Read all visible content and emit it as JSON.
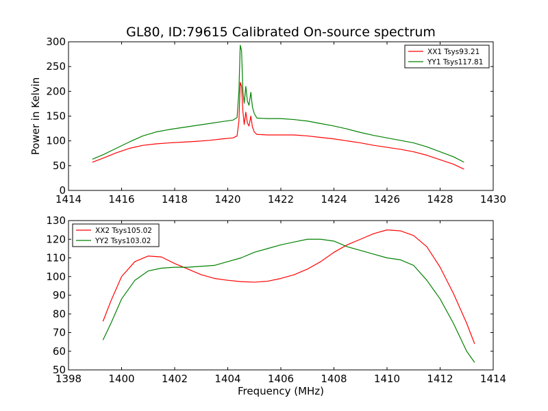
{
  "figure": {
    "title": "GL80, ID:79615 Calibrated On-source spectrum",
    "xlabel": "Frequency (MHz)"
  },
  "chart_data": [
    {
      "type": "line",
      "ylabel": "Power in Kelvin",
      "xlim": [
        1414,
        1430
      ],
      "ylim": [
        0,
        300
      ],
      "xticks": [
        1414,
        1416,
        1418,
        1420,
        1422,
        1424,
        1426,
        1428,
        1430
      ],
      "yticks": [
        0,
        50,
        100,
        150,
        200,
        250,
        300
      ],
      "grid": false,
      "legend_position": "top-right",
      "series": [
        {
          "name": "XX1 Tsys93.21",
          "color": "#ff0000",
          "points": [
            [
              1414.9,
              57
            ],
            [
              1415.3,
              65
            ],
            [
              1415.8,
              76
            ],
            [
              1416.3,
              85
            ],
            [
              1416.8,
              91
            ],
            [
              1417.3,
              94
            ],
            [
              1417.8,
              96
            ],
            [
              1418.3,
              97.5
            ],
            [
              1418.8,
              99
            ],
            [
              1419.3,
              101
            ],
            [
              1419.8,
              104
            ],
            [
              1420.2,
              106
            ],
            [
              1420.35,
              110
            ],
            [
              1420.42,
              140
            ],
            [
              1420.47,
              218
            ],
            [
              1420.52,
              210
            ],
            [
              1420.57,
              160
            ],
            [
              1420.62,
              133
            ],
            [
              1420.68,
              158
            ],
            [
              1420.74,
              136
            ],
            [
              1420.8,
              130
            ],
            [
              1420.87,
              150
            ],
            [
              1420.93,
              128
            ],
            [
              1421.0,
              118
            ],
            [
              1421.1,
              113
            ],
            [
              1421.5,
              112
            ],
            [
              1422.0,
              112
            ],
            [
              1422.5,
              112
            ],
            [
              1423.0,
              110
            ],
            [
              1423.5,
              107
            ],
            [
              1424.0,
              104
            ],
            [
              1424.5,
              100
            ],
            [
              1425.0,
              96
            ],
            [
              1425.5,
              91
            ],
            [
              1426.0,
              87
            ],
            [
              1426.5,
              83
            ],
            [
              1427.0,
              78
            ],
            [
              1427.5,
              71
            ],
            [
              1428.0,
              62
            ],
            [
              1428.5,
              53
            ],
            [
              1428.9,
              43
            ]
          ]
        },
        {
          "name": "YY1 Tsys117.81",
          "color": "#008000",
          "points": [
            [
              1414.9,
              63
            ],
            [
              1415.3,
              72
            ],
            [
              1415.8,
              85
            ],
            [
              1416.3,
              98
            ],
            [
              1416.8,
              110
            ],
            [
              1417.3,
              118
            ],
            [
              1417.8,
              123
            ],
            [
              1418.3,
              127
            ],
            [
              1418.8,
              131
            ],
            [
              1419.3,
              135
            ],
            [
              1419.8,
              139
            ],
            [
              1420.2,
              142
            ],
            [
              1420.35,
              147
            ],
            [
              1420.42,
              200
            ],
            [
              1420.47,
              293
            ],
            [
              1420.52,
              282
            ],
            [
              1420.57,
              200
            ],
            [
              1420.62,
              176
            ],
            [
              1420.68,
              210
            ],
            [
              1420.74,
              180
            ],
            [
              1420.8,
              172
            ],
            [
              1420.87,
              198
            ],
            [
              1420.93,
              168
            ],
            [
              1421.0,
              155
            ],
            [
              1421.1,
              146
            ],
            [
              1421.5,
              145
            ],
            [
              1422.0,
              145
            ],
            [
              1422.5,
              143
            ],
            [
              1423.0,
              140
            ],
            [
              1423.5,
              135
            ],
            [
              1424.0,
              130
            ],
            [
              1424.5,
              124
            ],
            [
              1425.0,
              117
            ],
            [
              1425.5,
              111
            ],
            [
              1426.0,
              106
            ],
            [
              1426.5,
              101
            ],
            [
              1427.0,
              96
            ],
            [
              1427.5,
              88
            ],
            [
              1428.0,
              78
            ],
            [
              1428.5,
              68
            ],
            [
              1428.9,
              57
            ]
          ]
        }
      ]
    },
    {
      "type": "line",
      "ylabel": "",
      "xlim": [
        1398,
        1414
      ],
      "ylim": [
        50,
        130
      ],
      "xticks": [
        1398,
        1400,
        1402,
        1404,
        1406,
        1408,
        1410,
        1412,
        1414
      ],
      "yticks": [
        50,
        60,
        70,
        80,
        90,
        100,
        110,
        120,
        130
      ],
      "grid": false,
      "legend_position": "top-left",
      "series": [
        {
          "name": "XX2 Tsys105.02",
          "color": "#ff0000",
          "points": [
            [
              1399.3,
              76
            ],
            [
              1399.6,
              87
            ],
            [
              1400.0,
              100
            ],
            [
              1400.5,
              108
            ],
            [
              1401.0,
              111
            ],
            [
              1401.5,
              110.5
            ],
            [
              1402.0,
              107
            ],
            [
              1402.5,
              104
            ],
            [
              1403.0,
              101
            ],
            [
              1403.5,
              99
            ],
            [
              1404.0,
              98
            ],
            [
              1404.5,
              97.3
            ],
            [
              1405.0,
              97
            ],
            [
              1405.5,
              97.5
            ],
            [
              1406.0,
              99
            ],
            [
              1406.5,
              101
            ],
            [
              1407.0,
              104
            ],
            [
              1407.5,
              108
            ],
            [
              1408.0,
              113
            ],
            [
              1408.5,
              117
            ],
            [
              1409.0,
              120
            ],
            [
              1409.5,
              123
            ],
            [
              1410.0,
              125
            ],
            [
              1410.5,
              124.5
            ],
            [
              1411.0,
              122
            ],
            [
              1411.5,
              116
            ],
            [
              1412.0,
              105
            ],
            [
              1412.5,
              91
            ],
            [
              1413.0,
              75
            ],
            [
              1413.3,
              64
            ]
          ]
        },
        {
          "name": "YY2 Tsys103.02",
          "color": "#008000",
          "points": [
            [
              1399.3,
              66
            ],
            [
              1399.6,
              75
            ],
            [
              1400.0,
              88
            ],
            [
              1400.5,
              98
            ],
            [
              1401.0,
              103
            ],
            [
              1401.5,
              104.5
            ],
            [
              1402.0,
              105
            ],
            [
              1402.5,
              105
            ],
            [
              1403.0,
              105.5
            ],
            [
              1403.5,
              106
            ],
            [
              1404.0,
              108
            ],
            [
              1404.5,
              110
            ],
            [
              1405.0,
              113
            ],
            [
              1405.5,
              115
            ],
            [
              1406.0,
              117
            ],
            [
              1406.5,
              118.5
            ],
            [
              1407.0,
              120
            ],
            [
              1407.5,
              120
            ],
            [
              1408.0,
              119
            ],
            [
              1408.5,
              116
            ],
            [
              1409.0,
              114
            ],
            [
              1409.5,
              112
            ],
            [
              1410.0,
              110
            ],
            [
              1410.5,
              109
            ],
            [
              1411.0,
              106
            ],
            [
              1411.5,
              98
            ],
            [
              1412.0,
              88
            ],
            [
              1412.5,
              75
            ],
            [
              1413.0,
              60
            ],
            [
              1413.3,
              54
            ]
          ]
        }
      ]
    }
  ]
}
